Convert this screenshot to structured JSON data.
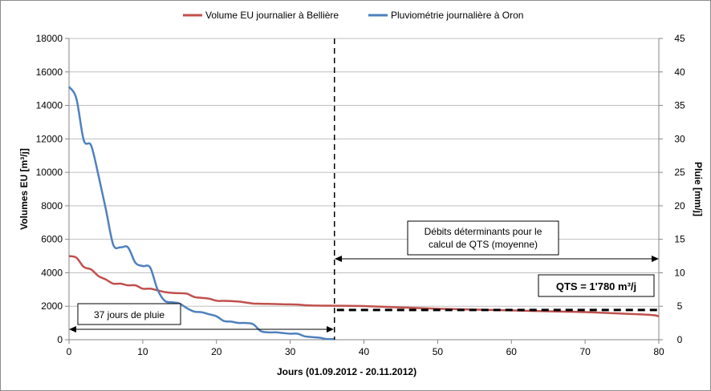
{
  "chart_data": {
    "type": "line",
    "xlabel": "Jours (01.09.2012 - 20.11.2012)",
    "ylabel": "Volumes EU [m³/j]",
    "y2label": "Pluie [mm/j]",
    "xlim": [
      0,
      80
    ],
    "ylim": [
      0,
      18000
    ],
    "y2lim": [
      0,
      45
    ],
    "x_ticks": [
      0,
      10,
      20,
      30,
      40,
      50,
      60,
      70,
      80
    ],
    "y_ticks": [
      0,
      2000,
      4000,
      6000,
      8000,
      10000,
      12000,
      14000,
      16000,
      18000
    ],
    "y2_ticks": [
      0,
      5,
      10,
      15,
      20,
      25,
      30,
      35,
      40,
      45
    ],
    "grid": "horizontal",
    "legend_position": "top",
    "series": [
      {
        "name": "Volume EU journalier à Bellière",
        "axis": "left",
        "color": "#c0504d",
        "x": [
          0,
          1,
          2,
          3,
          4,
          5,
          6,
          7,
          8,
          9,
          10,
          11,
          12,
          13,
          14,
          15,
          16,
          17,
          18,
          19,
          20,
          21,
          22,
          23,
          24,
          25,
          26,
          27,
          28,
          29,
          30,
          31,
          32,
          33,
          34,
          35,
          36,
          40,
          45,
          50,
          55,
          60,
          65,
          70,
          75,
          79,
          80
        ],
        "values": [
          5000,
          4900,
          4350,
          4200,
          3800,
          3600,
          3350,
          3350,
          3250,
          3250,
          3050,
          3050,
          2950,
          2850,
          2800,
          2780,
          2750,
          2550,
          2500,
          2450,
          2330,
          2320,
          2310,
          2280,
          2220,
          2160,
          2150,
          2140,
          2130,
          2120,
          2110,
          2100,
          2060,
          2050,
          2040,
          2035,
          2030,
          2010,
          1930,
          1850,
          1800,
          1750,
          1700,
          1650,
          1560,
          1480,
          1400
        ]
      },
      {
        "name": "Pluviométrie journalière à Oron",
        "axis": "right",
        "color": "#4f81bd",
        "x": [
          0,
          1,
          2,
          3,
          4,
          5,
          6,
          7,
          8,
          9,
          10,
          11,
          12,
          13,
          14,
          15,
          16,
          17,
          18,
          19,
          20,
          21,
          22,
          23,
          24,
          25,
          26,
          27,
          28,
          29,
          30,
          31,
          32,
          33,
          34,
          35,
          36
        ],
        "values": [
          37.8,
          36,
          29.8,
          29,
          24.5,
          19.5,
          14.2,
          13.8,
          13.8,
          11.5,
          11,
          10.8,
          7.5,
          5.8,
          5.6,
          5.4,
          4.7,
          4.2,
          4.1,
          3.8,
          3.5,
          2.8,
          2.7,
          2.5,
          2.5,
          2.3,
          1.3,
          1.1,
          1.1,
          1.0,
          0.9,
          0.9,
          0.5,
          0.4,
          0.3,
          0.1,
          0.1
        ]
      }
    ],
    "reference_lines": [
      {
        "orientation": "vertical",
        "x": 36,
        "style": "dashed"
      },
      {
        "orientation": "horizontal",
        "y": 1780,
        "x_range": [
          36,
          80
        ],
        "style": "dashed"
      }
    ],
    "annotations": {
      "rain_days": "37 jours de pluie",
      "determining_flows": "Débits déterminants pour le calcul de QTS (moyenne)",
      "determining_flows_line1": "Débits déterminants pour le",
      "determining_flows_line2": "calcul de QTS (moyenne)",
      "qts": "QTS = 1'780 m³/j"
    }
  }
}
